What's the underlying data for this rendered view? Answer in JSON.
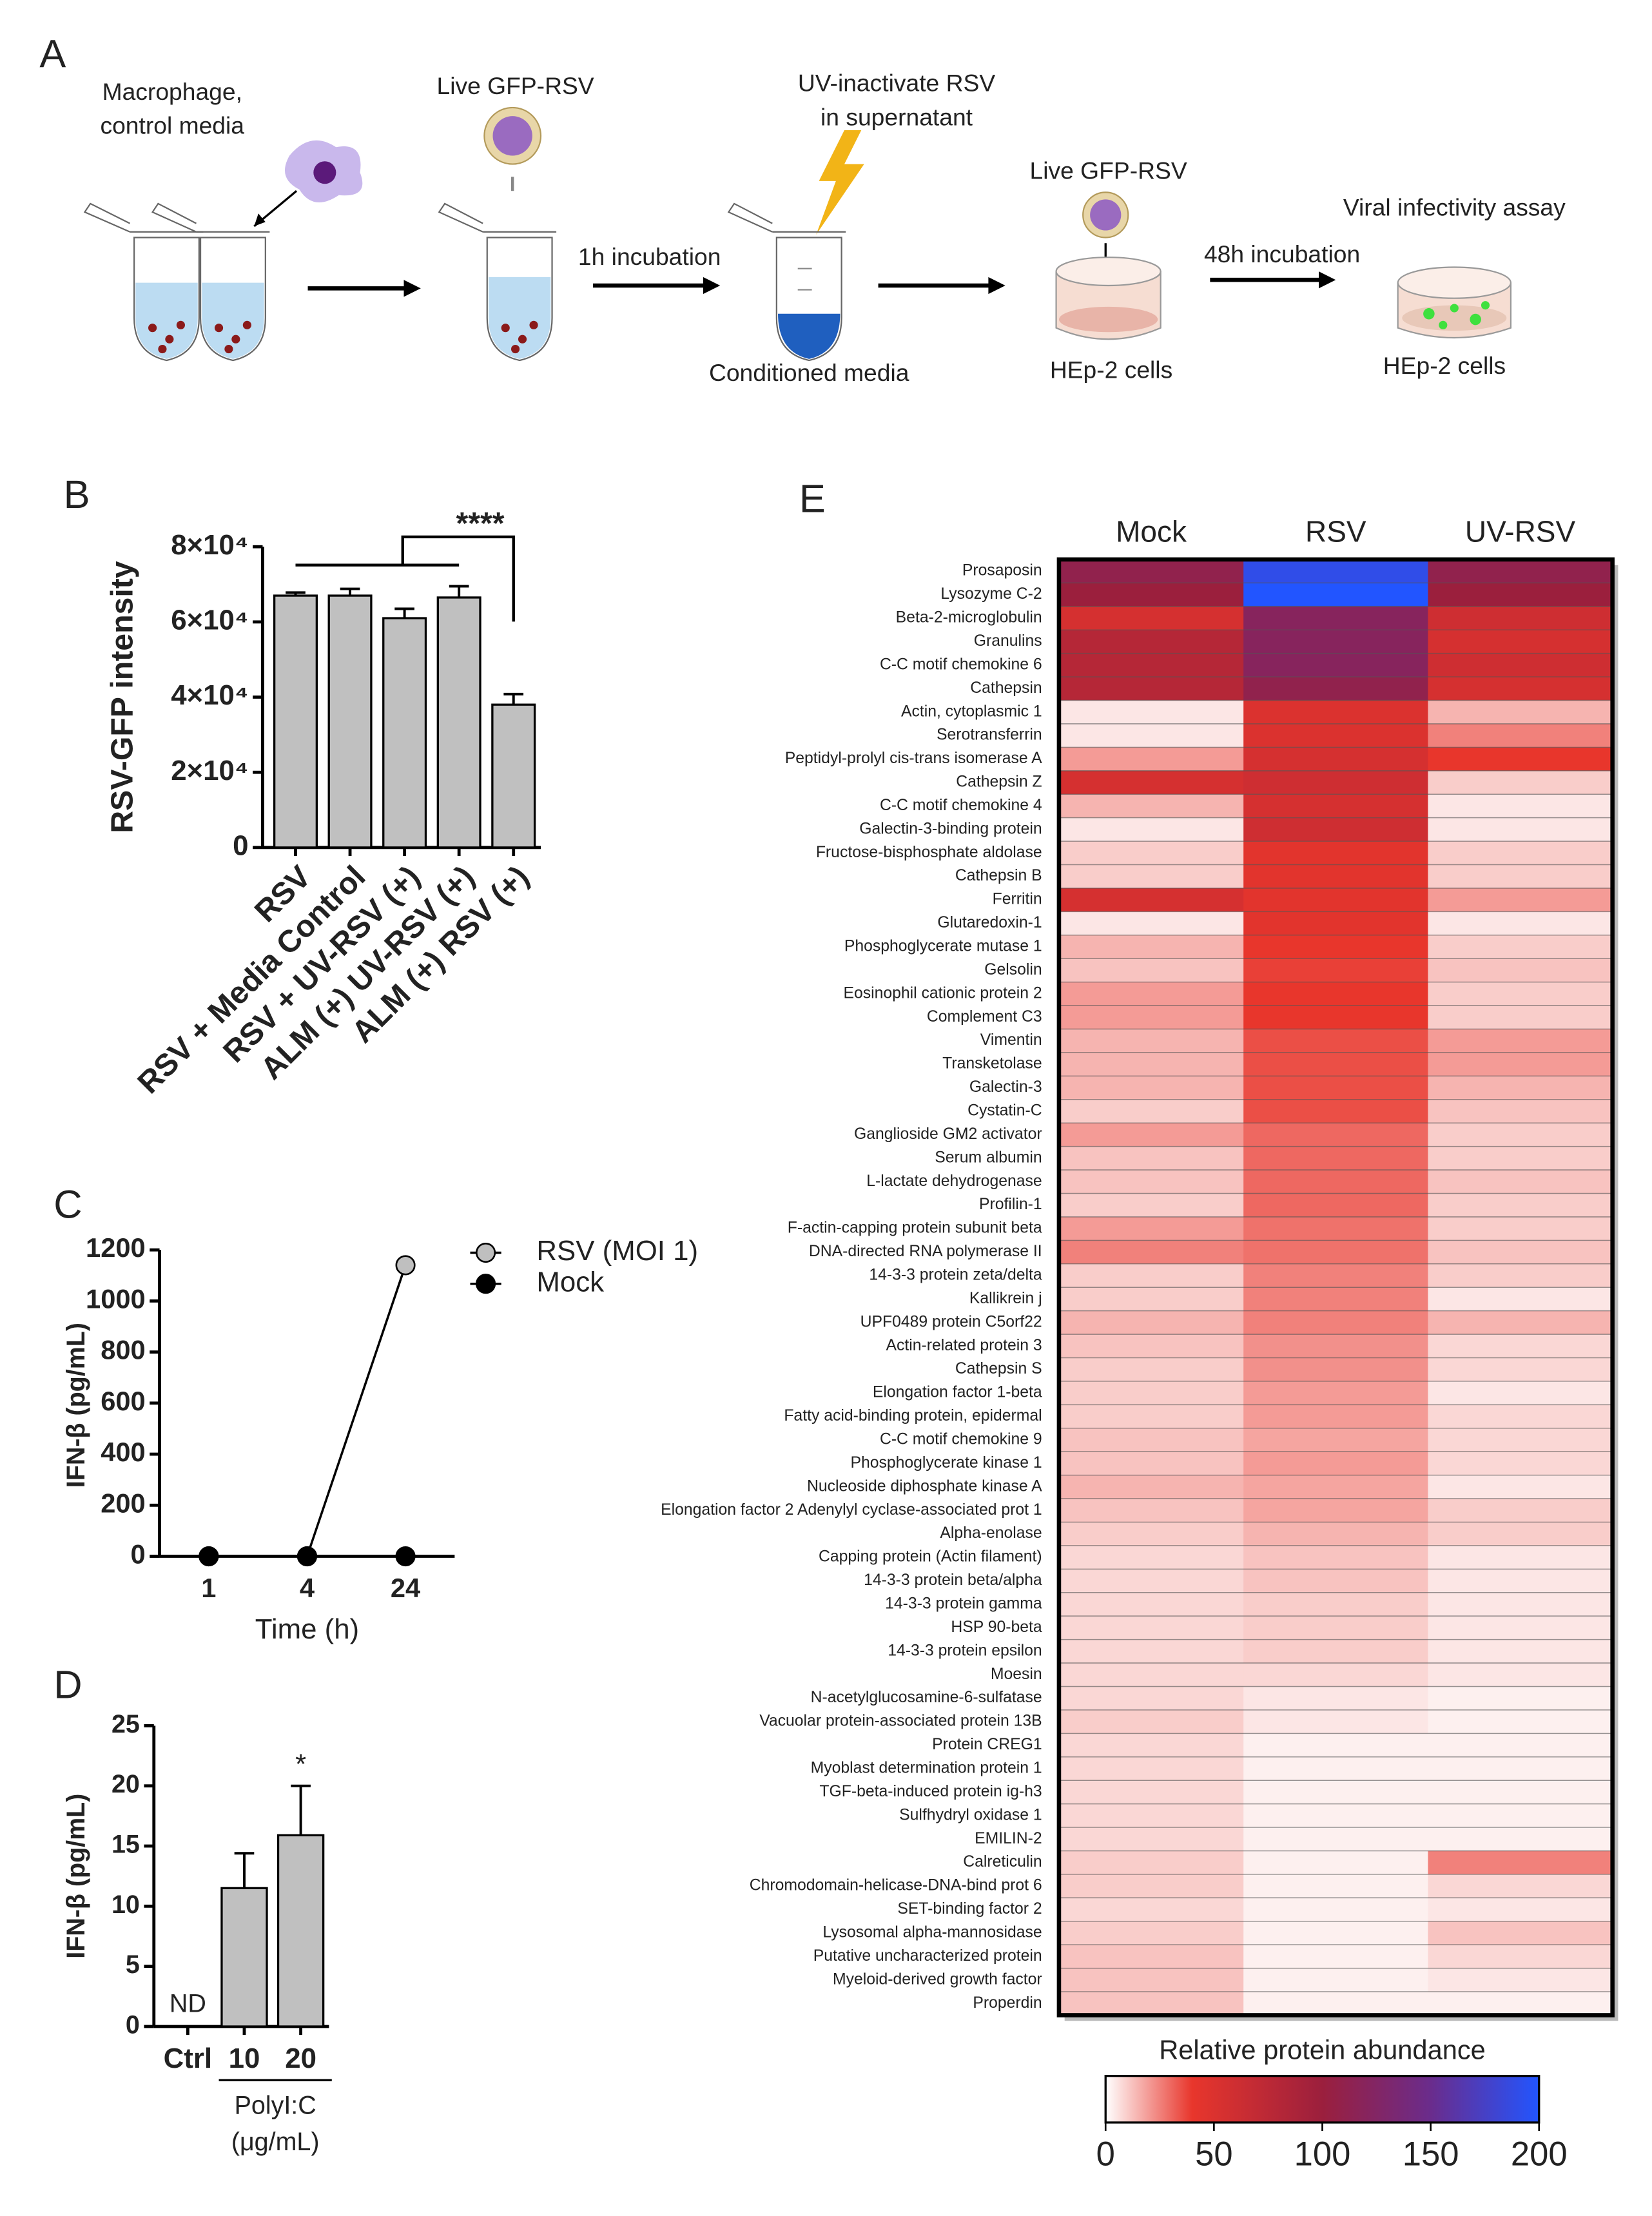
{
  "panel_labels": [
    "A",
    "B",
    "C",
    "D",
    "E"
  ],
  "diagram": {
    "macrophage_label": [
      "Macrophage,",
      "control media"
    ],
    "virus_label_1": "Live GFP-RSV",
    "uv_label": [
      "UV-inactivate RSV",
      "in supernatant"
    ],
    "step_1": "1h incubation",
    "conditioned_label": "Conditioned media",
    "virus_label_2": "Live GFP-RSV",
    "step_2": "48h incubation",
    "assay_label": "Viral infectivity assay",
    "cells_label_1": "HEp-2 cells",
    "cells_label_2": "HEp-2 cells"
  },
  "chart_data": [
    {
      "type": "bar",
      "ylabel": "RSV-GFP intensity",
      "categories": [
        "RSV",
        "RSV + Media Control",
        "RSV + UV-RSV (+)",
        "ALM (+) UV-RSV (+)",
        "ALM (+) RSV (+)"
      ],
      "values": [
        67000,
        67000,
        61000,
        66500,
        38000
      ],
      "errors": [
        800,
        1800,
        2500,
        3000,
        2800
      ],
      "color": "#c0c0c0",
      "ylim": [
        0,
        80000
      ],
      "yticks": [
        0,
        {
          "value": 20000,
          "label": "2×10⁴"
        },
        {
          "value": 40000,
          "label": "4×10⁴"
        },
        {
          "value": 60000,
          "label": "6×10⁴"
        },
        {
          "value": 80000,
          "label": "8×10⁴"
        }
      ],
      "annotation": "****"
    },
    {
      "type": "line",
      "xlabel": "Time (h)",
      "ylabel": "IFN-β (pg/mL)",
      "categories": [
        "1",
        "4",
        "24"
      ],
      "series": [
        {
          "name": "RSV (MOI 1)",
          "color": "#bfbfbf",
          "values": [
            0,
            0,
            1140
          ]
        },
        {
          "name": "Mock",
          "color": "#000000",
          "values": [
            0,
            0,
            0
          ]
        }
      ],
      "ylim": [
        0,
        1200
      ],
      "yticks": [
        0,
        200,
        400,
        600,
        800,
        1000,
        1200
      ]
    },
    {
      "type": "bar",
      "ylabel": "IFN-β (pg/mL)",
      "categories": [
        "Ctrl",
        "10",
        "20"
      ],
      "values": [
        null,
        11.5,
        15.9
      ],
      "errors": [
        null,
        2.9,
        4.1
      ],
      "color": "#c0c0c0",
      "ylim": [
        0,
        25
      ],
      "yticks": [
        0,
        5,
        10,
        15,
        20,
        25
      ],
      "annotations": [
        "ND",
        "*"
      ],
      "group_label": [
        "PolyI:C",
        "(μg/mL)"
      ]
    },
    {
      "type": "heatmap",
      "colorbar_title": "Relative protein abundance",
      "columns": [
        "Mock",
        "RSV",
        "UV-RSV"
      ],
      "rows": [
        "Prosaposin",
        "Lysozyme C-2",
        "Beta-2-microglobulin",
        "Granulins",
        "C-C motif chemokine 6",
        "Cathepsin",
        "Actin, cytoplasmic 1",
        "Serotransferrin",
        "Peptidyl-prolyl cis-trans isomerase A",
        "Cathepsin Z",
        "C-C motif chemokine 4",
        "Galectin-3-binding protein",
        "Fructose-bisphosphate aldolase",
        "Cathepsin B",
        "Ferritin",
        "Glutaredoxin-1",
        "Phosphoglycerate mutase 1",
        "Gelsolin",
        "Eosinophil cationic protein 2",
        "Complement C3",
        "Vimentin",
        "Transketolase",
        "Galectin-3",
        "Cystatin-C",
        "Ganglioside GM2 activator",
        "Serum albumin",
        "L-lactate dehydrogenase",
        "Profilin-1",
        "F-actin-capping protein subunit beta",
        "DNA-directed RNA polymerase II",
        "14-3-3 protein zeta/delta",
        "Kallikrein j",
        "UPF0489 protein C5orf22",
        "Actin-related protein 3",
        "Cathepsin S",
        "Elongation factor 1-beta",
        "Fatty acid-binding protein, epidermal",
        "C-C motif chemokine 9",
        "Phosphoglycerate kinase 1",
        "Nucleoside diphosphate kinase A",
        "Elongation factor 2 Adenylyl cyclase-associated prot 1",
        "Alpha-enolase",
        "Capping protein (Actin filament)",
        "14-3-3 protein beta/alpha",
        "14-3-3 protein gamma",
        "HSP 90-beta",
        "14-3-3 protein epsilon",
        "Moesin",
        "N-acetylglucosamine-6-sulfatase",
        "Vacuolar protein-associated protein 13B",
        "Protein CREG1",
        "Myoblast determination protein 1",
        "TGF-beta-induced protein ig-h3",
        "Sulfhydryl oxidase 1",
        "EMILIN-2",
        "Calreticulin",
        "Chromodomain-helicase-DNA-bind prot 6",
        "SET-binding factor 2",
        "Lysosomal alpha-mannosidase",
        "Putative uncharacterized protein",
        "Myeloid-derived growth factor",
        "Properdin"
      ],
      "values": [
        [
          110,
          190,
          110
        ],
        [
          100,
          200,
          100
        ],
        [
          55,
          120,
          60
        ],
        [
          80,
          120,
          55
        ],
        [
          80,
          120,
          60
        ],
        [
          80,
          110,
          55
        ],
        [
          5,
          50,
          15
        ],
        [
          5,
          50,
          25
        ],
        [
          20,
          55,
          40
        ],
        [
          55,
          60,
          10
        ],
        [
          15,
          55,
          5
        ],
        [
          5,
          60,
          5
        ],
        [
          10,
          45,
          10
        ],
        [
          10,
          45,
          10
        ],
        [
          55,
          45,
          20
        ],
        [
          5,
          45,
          5
        ],
        [
          15,
          40,
          10
        ],
        [
          12,
          38,
          12
        ],
        [
          20,
          40,
          10
        ],
        [
          20,
          40,
          10
        ],
        [
          15,
          35,
          20
        ],
        [
          15,
          35,
          20
        ],
        [
          15,
          35,
          15
        ],
        [
          10,
          35,
          12
        ],
        [
          20,
          30,
          10
        ],
        [
          12,
          30,
          10
        ],
        [
          12,
          30,
          12
        ],
        [
          10,
          30,
          10
        ],
        [
          20,
          28,
          10
        ],
        [
          25,
          28,
          12
        ],
        [
          10,
          25,
          10
        ],
        [
          10,
          25,
          5
        ],
        [
          15,
          25,
          15
        ],
        [
          12,
          22,
          8
        ],
        [
          10,
          22,
          8
        ],
        [
          10,
          20,
          5
        ],
        [
          10,
          20,
          8
        ],
        [
          12,
          18,
          8
        ],
        [
          12,
          20,
          8
        ],
        [
          15,
          18,
          5
        ],
        [
          12,
          18,
          10
        ],
        [
          10,
          15,
          10
        ],
        [
          8,
          12,
          5
        ],
        [
          8,
          12,
          5
        ],
        [
          8,
          10,
          5
        ],
        [
          8,
          10,
          5
        ],
        [
          8,
          10,
          5
        ],
        [
          8,
          8,
          5
        ],
        [
          8,
          5,
          3
        ],
        [
          10,
          5,
          3
        ],
        [
          8,
          3,
          3
        ],
        [
          8,
          3,
          3
        ],
        [
          8,
          3,
          3
        ],
        [
          8,
          3,
          3
        ],
        [
          8,
          3,
          3
        ],
        [
          10,
          3,
          25
        ],
        [
          10,
          3,
          8
        ],
        [
          8,
          3,
          5
        ],
        [
          10,
          3,
          12
        ],
        [
          12,
          3,
          8
        ],
        [
          12,
          3,
          5
        ],
        [
          12,
          3,
          3
        ]
      ],
      "colorscale": [
        [
          0,
          "#ffffff"
        ],
        [
          40,
          "#e8362c"
        ],
        [
          100,
          "#9b1f3d"
        ],
        [
          150,
          "#6a2c8c"
        ],
        [
          200,
          "#2255ff"
        ]
      ],
      "clim": [
        0,
        200
      ],
      "cticks": [
        0,
        50,
        100,
        150,
        200
      ]
    }
  ]
}
